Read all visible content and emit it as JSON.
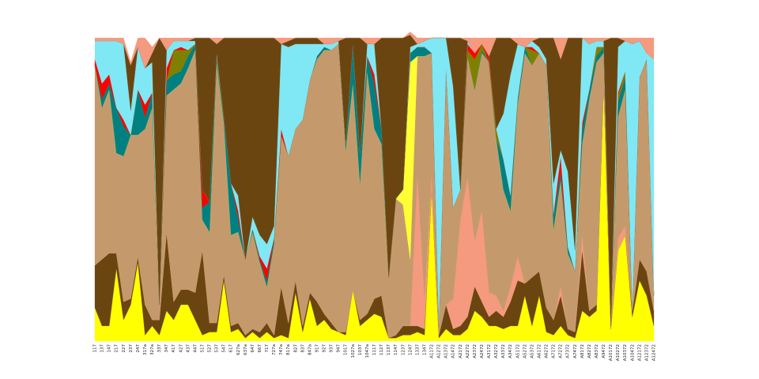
{
  "chart_data": {
    "type": "stacked_area",
    "categories": [
      "117",
      "137",
      "147",
      "217",
      "227",
      "237",
      "247",
      "317a",
      "327a",
      "337",
      "347",
      "417",
      "427",
      "437",
      "447",
      "517",
      "527",
      "537",
      "547",
      "617",
      "627a",
      "637a",
      "647",
      "667",
      "717",
      "727a",
      "747a",
      "817a",
      "827",
      "837",
      "847a",
      "917",
      "927",
      "937",
      "947",
      "1017",
      "1027a",
      "1037",
      "1047a",
      "1117",
      "1127",
      "1137",
      "1147",
      "1237",
      "1247",
      "1337",
      "1347",
      "A1172",
      "A1272",
      "A1372",
      "A1472",
      "A2172",
      "A2272",
      "A2372",
      "A2472",
      "A3172",
      "A3272",
      "A3372",
      "A3472",
      "A5172",
      "A5272",
      "A5372",
      "A6172",
      "A6272",
      "A7172",
      "A7272",
      "A7372",
      "A7472",
      "A8172",
      "A8272",
      "A8372",
      "A9472",
      "A10172",
      "A10272",
      "A10372",
      "A10472",
      "A12172",
      "A12372",
      "A12472"
    ],
    "ylim": [
      0,
      100
    ],
    "series": [
      {
        "color": "#ffff00",
        "values": [
          11,
          5,
          5,
          24,
          7,
          12,
          26,
          2,
          5,
          2,
          10,
          7,
          12,
          12,
          7,
          2,
          3,
          3,
          20,
          3,
          4,
          1,
          3,
          1,
          3,
          1,
          2,
          1,
          16,
          3,
          14,
          5,
          7,
          4,
          3,
          2,
          17,
          5,
          7,
          9,
          8,
          1,
          1,
          2,
          2,
          3,
          2,
          50,
          1,
          4,
          2,
          2,
          4,
          10,
          8,
          5,
          5,
          4,
          5,
          5,
          15,
          5,
          15,
          3,
          2,
          5,
          2,
          1,
          10,
          8,
          10,
          85,
          4,
          30,
          35,
          8,
          20,
          15,
          5
        ]
      },
      {
        "color": "#6b4510",
        "values": [
          14,
          22,
          24,
          5,
          6,
          2,
          2,
          10,
          2,
          5,
          26,
          6,
          5,
          5,
          9,
          28,
          3,
          3,
          2,
          2,
          2,
          1,
          1,
          2,
          3,
          1,
          16,
          5,
          4,
          2,
          2,
          8,
          2,
          2,
          0,
          1,
          0,
          2,
          2,
          5,
          7,
          0,
          1,
          3,
          3,
          2,
          2,
          0,
          1,
          8,
          2,
          3,
          4,
          8,
          5,
          3,
          5,
          4,
          8,
          15,
          4,
          16,
          8,
          8,
          5,
          10,
          2,
          2,
          20,
          2,
          2,
          0,
          0,
          0,
          0,
          2,
          7,
          8,
          5
        ]
      },
      {
        "color": "#f59a7e",
        "values": [
          0,
          0,
          0,
          0,
          0,
          0,
          0,
          0,
          0,
          0,
          0,
          0,
          0,
          0,
          0,
          0,
          0,
          0,
          0,
          0,
          0,
          0,
          0,
          0,
          0,
          0,
          0,
          0,
          0,
          0,
          0,
          0,
          0,
          0,
          0,
          0,
          0,
          0,
          0,
          0,
          0,
          0,
          0,
          0,
          0,
          50,
          10,
          5,
          0,
          0,
          10,
          35,
          46,
          15,
          30,
          8,
          5,
          2,
          5,
          8,
          0,
          0,
          0,
          0,
          0,
          3,
          0,
          0,
          5,
          0,
          0,
          0,
          0,
          4,
          3,
          0,
          0,
          0,
          0
        ]
      },
      {
        "color": "#c49a6c",
        "values": [
          66,
          50,
          54,
          33,
          48,
          54,
          40,
          58,
          70,
          5,
          45,
          70,
          68,
          73,
          80,
          10,
          30,
          86,
          50,
          30,
          30,
          25,
          32,
          23,
          12,
          30,
          50,
          55,
          50,
          68,
          70,
          80,
          87,
          90,
          95,
          60,
          68,
          45,
          80,
          56,
          50,
          20,
          45,
          40,
          22,
          39,
          80,
          40,
          3,
          78,
          30,
          10,
          40,
          50,
          52,
          76,
          52,
          40,
          25,
          50,
          76,
          70,
          72,
          80,
          30,
          35,
          25,
          20,
          30,
          70,
          80,
          10,
          1,
          40,
          45,
          0,
          60,
          70,
          5
        ]
      },
      {
        "color": "#ffff33",
        "values": [
          0,
          0,
          0,
          0,
          0,
          0,
          0,
          0,
          0,
          0,
          0,
          0,
          0,
          0,
          0,
          0,
          0,
          0,
          0,
          0,
          0,
          0,
          0,
          0,
          0,
          0,
          0,
          0,
          0,
          0,
          0,
          0,
          0,
          0,
          0,
          0,
          0,
          0,
          0,
          0,
          0,
          0,
          0,
          5,
          65,
          0,
          0,
          0,
          0,
          0,
          0,
          0,
          0,
          0,
          0,
          0,
          0,
          0,
          0,
          0,
          0,
          0,
          0,
          0,
          0,
          0,
          0,
          0,
          0,
          0,
          0,
          0,
          0,
          0,
          0,
          0,
          0,
          0,
          0
        ]
      },
      {
        "color": "#008080",
        "values": [
          0,
          3,
          2,
          15,
          10,
          0,
          15,
          4,
          5,
          0,
          5,
          5,
          4,
          4,
          2,
          4,
          10,
          2,
          2,
          17,
          5,
          0,
          1,
          1,
          2,
          2,
          0,
          0,
          0,
          0,
          0,
          1,
          1,
          0,
          0,
          2,
          13,
          10,
          5,
          15,
          5,
          0,
          0,
          0,
          3,
          3,
          3,
          0,
          0,
          0,
          0,
          0,
          0,
          0,
          1,
          0,
          0,
          10,
          5,
          2,
          2,
          0,
          0,
          0,
          5,
          3,
          2,
          0,
          5,
          3,
          2,
          2,
          0,
          5,
          4,
          0,
          0,
          0,
          0
        ]
      },
      {
        "color": "#808000",
        "values": [
          0,
          0,
          0,
          0,
          0,
          0,
          0,
          0,
          0,
          0,
          0,
          8,
          7,
          2,
          0,
          0,
          0,
          0,
          0,
          0,
          0,
          0,
          0,
          0,
          0,
          0,
          0,
          0,
          0,
          0,
          0,
          0,
          0,
          0,
          0,
          0,
          0,
          0,
          0,
          0,
          0,
          0,
          0,
          0,
          0,
          0,
          0,
          0,
          0,
          0,
          0,
          0,
          2,
          10,
          2,
          0,
          3,
          0,
          0,
          0,
          0,
          5,
          0,
          0,
          0,
          0,
          0,
          0,
          0,
          0,
          3,
          0,
          0,
          2,
          2,
          0,
          0,
          0,
          0
        ]
      },
      {
        "color": "#ff0000",
        "values": [
          2,
          5,
          3,
          0,
          2,
          0,
          0,
          4,
          0,
          0,
          4,
          0,
          1,
          0,
          0,
          6,
          0,
          0,
          0,
          0,
          2,
          0,
          0,
          1,
          4,
          0,
          2,
          0,
          0,
          0,
          0,
          0,
          0,
          0,
          0,
          0,
          0,
          0,
          0,
          3,
          0,
          0,
          0,
          0,
          0,
          0,
          0,
          0,
          0,
          0,
          0,
          0,
          2,
          2,
          0,
          2,
          0,
          0,
          0,
          0,
          0,
          1,
          0,
          0,
          0,
          5,
          0,
          0,
          2,
          0,
          0,
          0,
          0,
          1,
          0,
          0,
          0,
          0,
          0
        ]
      },
      {
        "color": "#7fe8f4",
        "values": [
          6,
          14,
          11,
          22,
          25,
          8,
          14,
          12,
          10,
          0,
          6,
          3,
          2,
          3,
          1,
          0,
          0,
          1,
          0,
          0,
          5,
          0,
          4,
          7,
          8,
          4,
          28,
          36,
          28,
          25,
          12,
          4,
          1,
          2,
          1,
          0,
          0,
          0,
          4,
          10,
          0,
          0,
          0,
          0,
          2,
          1,
          2,
          5,
          95,
          10,
          40,
          0,
          1,
          0,
          0,
          0,
          0,
          15,
          40,
          18,
          0,
          2,
          2,
          2,
          10,
          2,
          25,
          7,
          28,
          15,
          2,
          2,
          0,
          15,
          10,
          88,
          12,
          2,
          78
        ]
      },
      {
        "color": "#6b4510",
        "values": [
          0,
          0,
          0,
          0,
          0,
          15,
          0,
          0,
          3,
          88,
          0,
          0,
          0,
          0,
          1,
          50,
          54,
          3,
          26,
          48,
          52,
          73,
          59,
          65,
          68,
          62,
          0,
          2,
          2,
          2,
          2,
          2,
          0,
          0,
          0,
          35,
          2,
          38,
          0,
          0,
          30,
          79,
          53,
          50,
          4,
          0,
          0,
          0,
          0,
          0,
          16,
          50,
          0,
          0,
          0,
          0,
          30,
          25,
          12,
          0,
          0,
          0,
          3,
          7,
          48,
          30,
          44,
          70,
          0,
          0,
          0,
          0,
          95,
          3,
          0,
          0,
          0,
          0,
          0
        ]
      },
      {
        "color": "#f59a7e",
        "values": [
          1,
          1,
          1,
          1,
          2,
          1,
          3,
          10,
          2,
          0,
          4,
          1,
          1,
          1,
          0,
          0,
          0,
          2,
          0,
          0,
          0,
          0,
          0,
          0,
          0,
          0,
          2,
          1,
          0,
          0,
          0,
          0,
          2,
          2,
          1,
          0,
          0,
          0,
          2,
          2,
          0,
          0,
          0,
          0,
          1,
          2,
          1,
          0,
          0,
          0,
          0,
          0,
          1,
          5,
          2,
          6,
          0,
          0,
          0,
          2,
          3,
          1,
          0,
          0,
          0,
          7,
          0,
          0,
          0,
          2,
          1,
          1,
          0,
          0,
          1,
          2,
          1,
          5,
          7
        ]
      }
    ]
  }
}
